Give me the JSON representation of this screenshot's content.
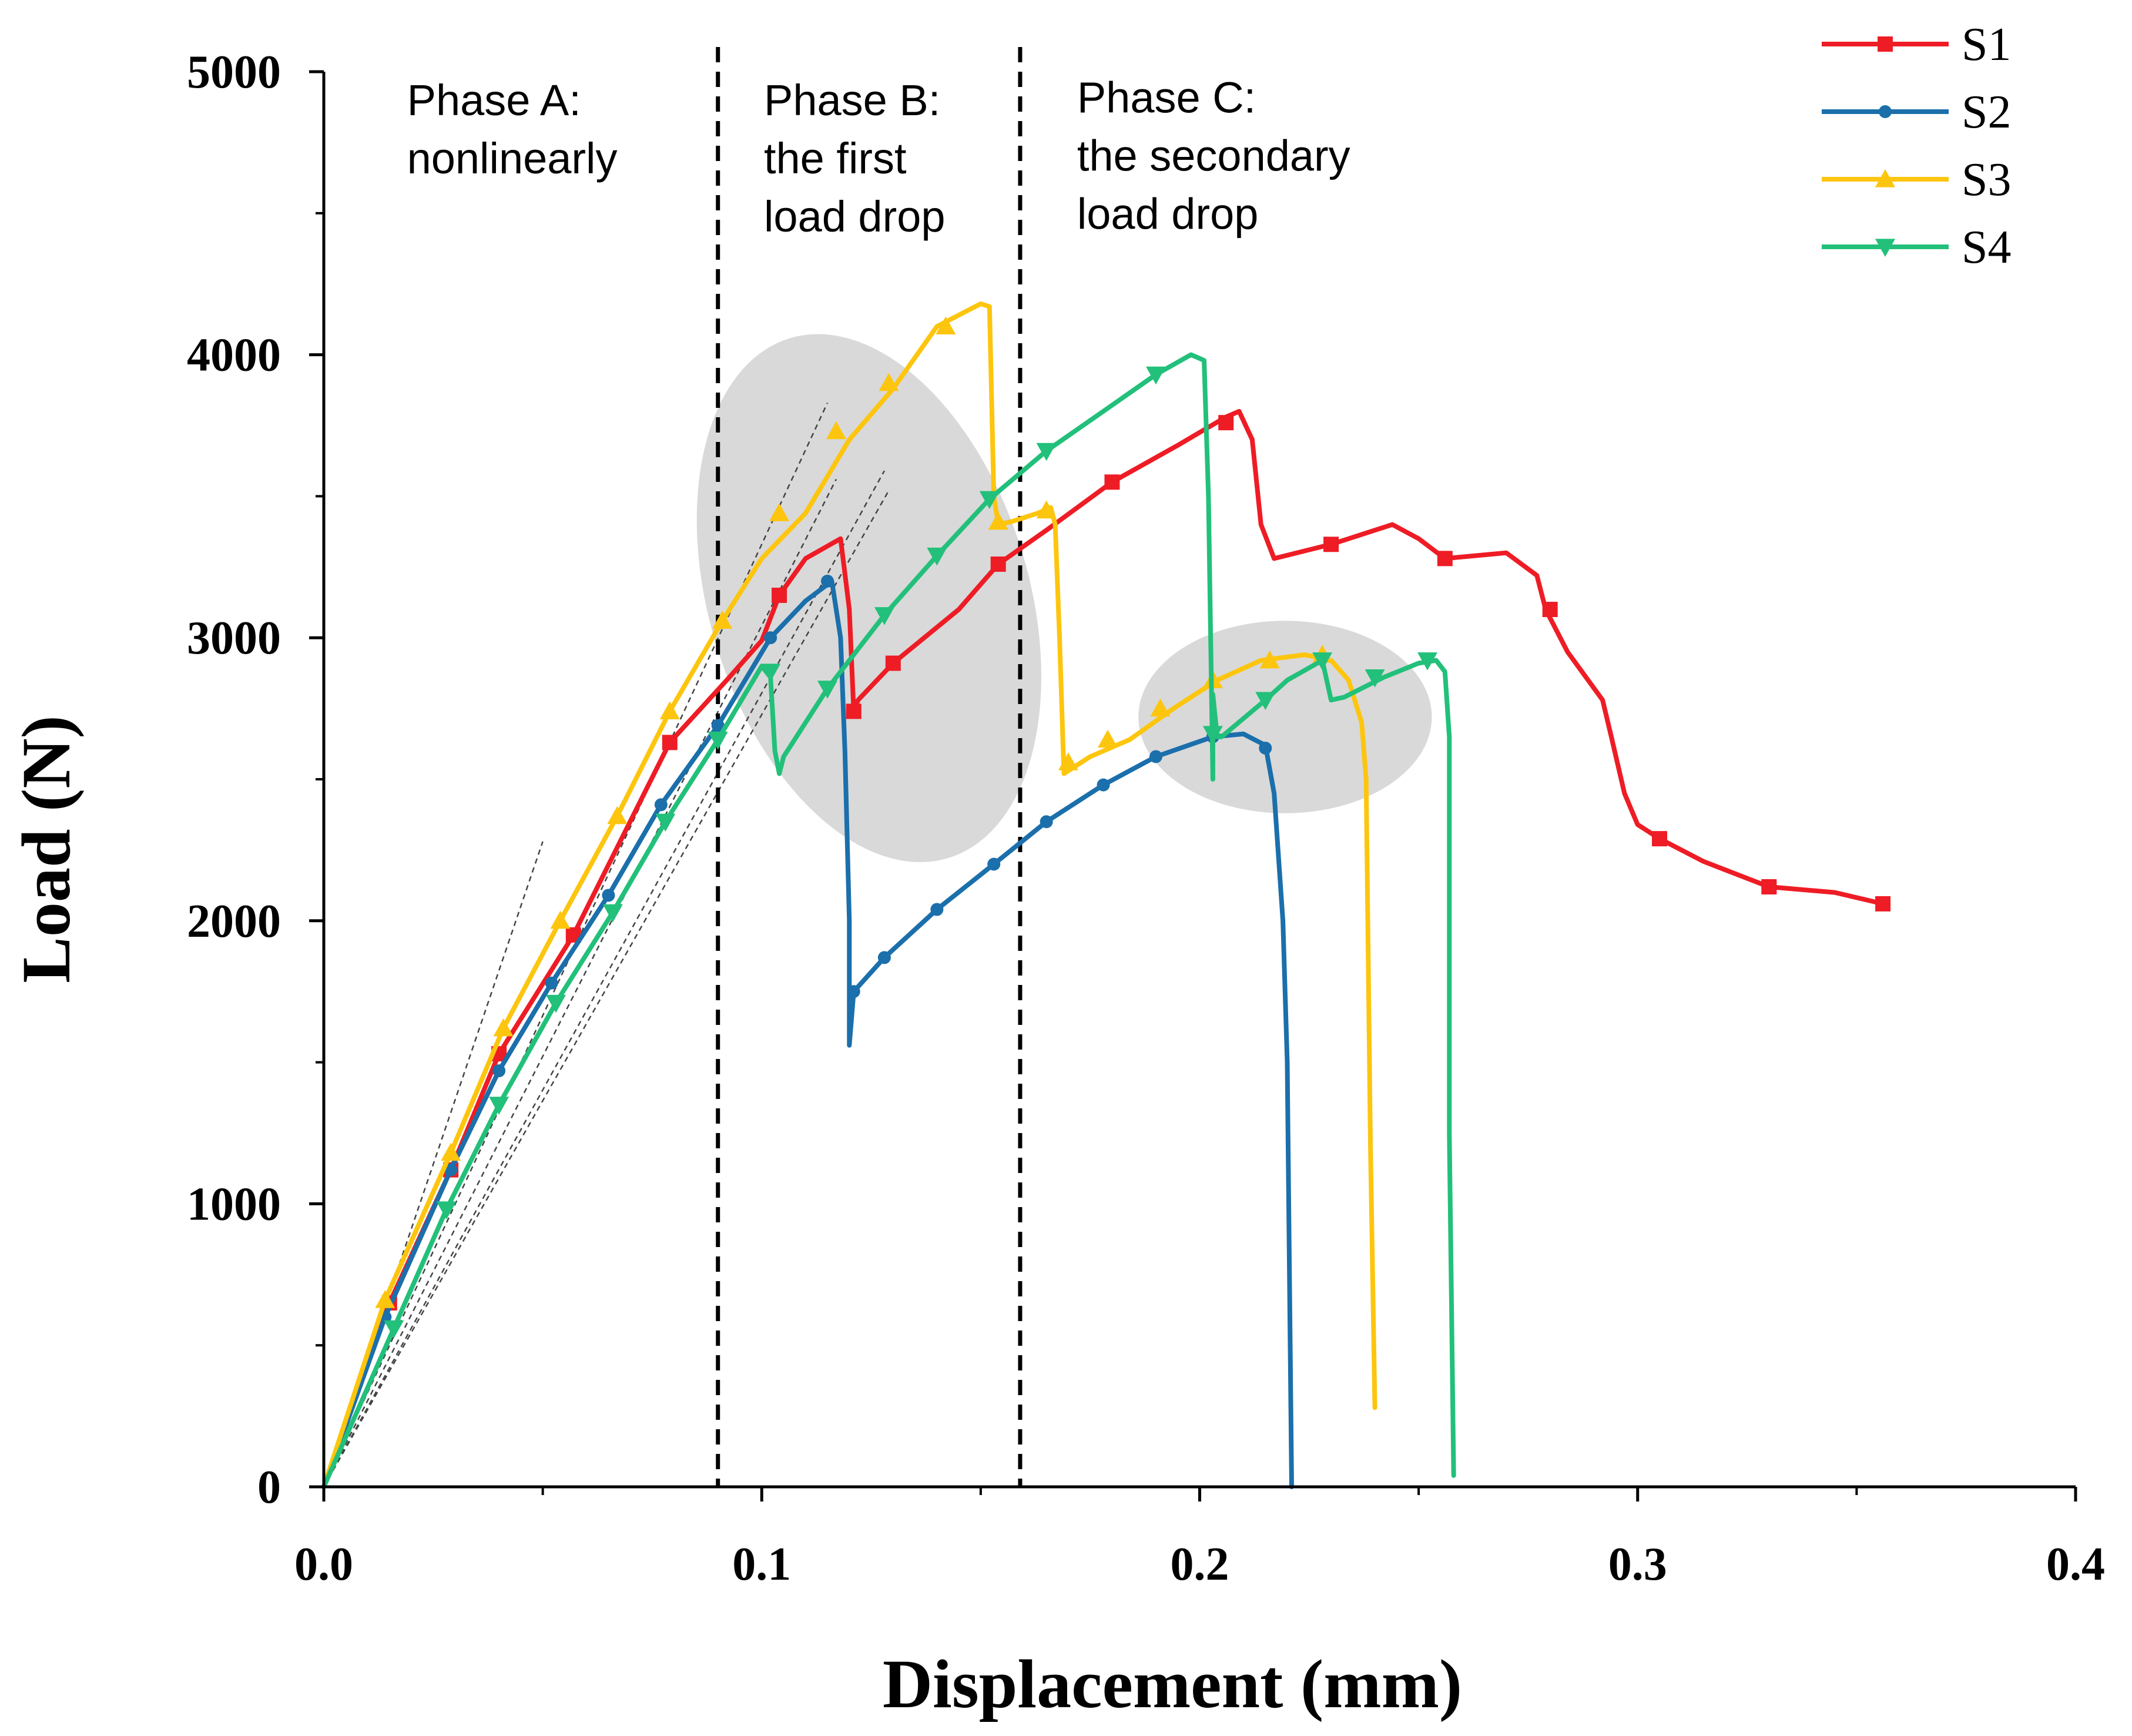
{
  "chart_data": {
    "type": "line",
    "title": "",
    "xlabel": "Displacement (mm)",
    "ylabel": "Load (N)",
    "xlim": [
      0,
      0.4
    ],
    "ylim": [
      0,
      5000
    ],
    "x_ticks": [
      0.0,
      0.1,
      0.2,
      0.3,
      0.4
    ],
    "x_tick_labels": [
      "0.0",
      "0.1",
      "0.2",
      "0.3",
      "0.4"
    ],
    "y_ticks": [
      0,
      1000,
      2000,
      3000,
      4000,
      5000
    ],
    "y_tick_labels": [
      "0",
      "1000",
      "2000",
      "3000",
      "4000",
      "5000"
    ],
    "grid": false,
    "legend_position": "top-right",
    "phase_boundaries": [
      0.09,
      0.159
    ],
    "phase_labels": [
      {
        "id": "A",
        "lines": [
          "Phase A:",
          "nonlinearly"
        ],
        "x": 0.019,
        "y": 4900
      },
      {
        "id": "B",
        "lines": [
          "Phase B:",
          "the first",
          "load drop"
        ],
        "x": 0.1005,
        "y": 4900
      },
      {
        "id": "C",
        "lines": [
          "Phase C:",
          "the secondary",
          "load drop"
        ],
        "x": 0.172,
        "y": 4910
      }
    ],
    "highlight_regions": [
      {
        "cx": 0.1245,
        "cy": 3140,
        "rx_data": 0.0365,
        "ry_data": 960,
        "angle": 17
      },
      {
        "cx": 0.2195,
        "cy": 2720,
        "rx_data": 0.0335,
        "ry_data": 340,
        "angle": 0
      }
    ],
    "guide_lines": [
      {
        "x": [
          0.0,
          0.05
        ],
        "y": [
          0,
          2280
        ]
      },
      {
        "x": [
          0.0,
          0.115
        ],
        "y": [
          0,
          3830
        ]
      },
      {
        "x": [
          0.0,
          0.117
        ],
        "y": [
          0,
          3560
        ]
      },
      {
        "x": [
          0.0,
          0.128
        ],
        "y": [
          0,
          3590
        ]
      },
      {
        "x": [
          0.0,
          0.129
        ],
        "y": [
          0,
          3520
        ]
      }
    ],
    "series": [
      {
        "name": "S1",
        "color": "#ee1c25",
        "marker": "square",
        "x": [
          0,
          0.015,
          0.029,
          0.04,
          0.057,
          0.079,
          0.092,
          0.1,
          0.104,
          0.11,
          0.118,
          0.12,
          0.121,
          0.122,
          0.13,
          0.145,
          0.154,
          0.165,
          0.18,
          0.195,
          0.206,
          0.209,
          0.212,
          0.214,
          0.217,
          0.23,
          0.24,
          0.244,
          0.25,
          0.256,
          0.27,
          0.277,
          0.279,
          0.284,
          0.292,
          0.294,
          0.297,
          0.3,
          0.305,
          0.315,
          0.33,
          0.345,
          0.356
        ],
        "y": [
          0,
          650,
          1120,
          1530,
          1950,
          2630,
          2850,
          2990,
          3150,
          3280,
          3350,
          3100,
          2740,
          2780,
          2910,
          3100,
          3260,
          3380,
          3550,
          3680,
          3780,
          3800,
          3700,
          3400,
          3280,
          3330,
          3380,
          3400,
          3350,
          3280,
          3300,
          3220,
          3100,
          2950,
          2780,
          2650,
          2450,
          2340,
          2290,
          2210,
          2120,
          2100,
          2060
        ],
        "marker_points": [
          [
            0.015,
            650
          ],
          [
            0.029,
            1120
          ],
          [
            0.04,
            1530
          ],
          [
            0.057,
            1950
          ],
          [
            0.079,
            2630
          ],
          [
            0.104,
            3150
          ],
          [
            0.121,
            2740
          ],
          [
            0.13,
            2910
          ],
          [
            0.154,
            3260
          ],
          [
            0.18,
            3550
          ],
          [
            0.206,
            3760
          ],
          [
            0.23,
            3330
          ],
          [
            0.256,
            3280
          ],
          [
            0.28,
            3100
          ],
          [
            0.305,
            2290
          ],
          [
            0.33,
            2120
          ],
          [
            0.356,
            2060
          ]
        ]
      },
      {
        "name": "S2",
        "color": "#1b6fab",
        "marker": "circle",
        "x": [
          0,
          0.014,
          0.029,
          0.04,
          0.052,
          0.065,
          0.077,
          0.09,
          0.102,
          0.11,
          0.116,
          0.118,
          0.119,
          0.12,
          0.12,
          0.121,
          0.128,
          0.14,
          0.153,
          0.165,
          0.178,
          0.19,
          0.203,
          0.21,
          0.215,
          0.217,
          0.219,
          0.22,
          0.221
        ],
        "y": [
          0,
          600,
          1120,
          1470,
          1780,
          2090,
          2410,
          2690,
          3000,
          3130,
          3200,
          3000,
          2600,
          2000,
          1560,
          1750,
          1870,
          2040,
          2200,
          2350,
          2480,
          2580,
          2650,
          2660,
          2620,
          2450,
          2000,
          1500,
          0
        ],
        "marker_points": [
          [
            0.014,
            600
          ],
          [
            0.029,
            1120
          ],
          [
            0.04,
            1470
          ],
          [
            0.052,
            1780
          ],
          [
            0.065,
            2090
          ],
          [
            0.077,
            2410
          ],
          [
            0.09,
            2690
          ],
          [
            0.102,
            3000
          ],
          [
            0.115,
            3200
          ],
          [
            0.121,
            1750
          ],
          [
            0.128,
            1870
          ],
          [
            0.14,
            2040
          ],
          [
            0.153,
            2200
          ],
          [
            0.165,
            2350
          ],
          [
            0.178,
            2480
          ],
          [
            0.19,
            2580
          ],
          [
            0.203,
            2650
          ],
          [
            0.215,
            2610
          ]
        ]
      },
      {
        "name": "S3",
        "color": "#fdc50d",
        "marker": "triangle-up",
        "x": [
          0,
          0.014,
          0.029,
          0.041,
          0.054,
          0.067,
          0.079,
          0.091,
          0.1,
          0.11,
          0.12,
          0.13,
          0.14,
          0.15,
          0.152,
          0.153,
          0.154,
          0.157,
          0.163,
          0.166,
          0.167,
          0.168,
          0.169,
          0.175,
          0.184,
          0.194,
          0.204,
          0.214,
          0.224,
          0.23,
          0.234,
          0.237,
          0.238,
          0.239,
          0.24
        ],
        "y": [
          0,
          660,
          1180,
          1620,
          2000,
          2370,
          2740,
          3060,
          3280,
          3440,
          3700,
          3880,
          4100,
          4180,
          4170,
          3500,
          3400,
          3410,
          3440,
          3460,
          3400,
          3000,
          2520,
          2580,
          2640,
          2750,
          2850,
          2920,
          2940,
          2920,
          2850,
          2700,
          2500,
          1200,
          280
        ],
        "marker_points": [
          [
            0.014,
            660
          ],
          [
            0.029,
            1180
          ],
          [
            0.041,
            1620
          ],
          [
            0.054,
            2000
          ],
          [
            0.067,
            2370
          ],
          [
            0.079,
            2740
          ],
          [
            0.091,
            3060
          ],
          [
            0.104,
            3440
          ],
          [
            0.117,
            3730
          ],
          [
            0.129,
            3900
          ],
          [
            0.142,
            4100
          ],
          [
            0.154,
            3410
          ],
          [
            0.165,
            3450
          ],
          [
            0.17,
            2560
          ],
          [
            0.179,
            2640
          ],
          [
            0.191,
            2750
          ],
          [
            0.203,
            2850
          ],
          [
            0.216,
            2920
          ],
          [
            0.228,
            2940
          ]
        ]
      },
      {
        "name": "S4",
        "color": "#22c07a",
        "marker": "triangle-down",
        "x": [
          0,
          0.016,
          0.028,
          0.04,
          0.053,
          0.066,
          0.078,
          0.09,
          0.1,
          0.102,
          0.103,
          0.104,
          0.105,
          0.115,
          0.128,
          0.14,
          0.152,
          0.165,
          0.178,
          0.19,
          0.198,
          0.201,
          0.202,
          0.203,
          0.203,
          0.204,
          0.205,
          0.215,
          0.22,
          0.228,
          0.23,
          0.233,
          0.242,
          0.25,
          0.254,
          0.256,
          0.257,
          0.257,
          0.258
        ],
        "y": [
          0,
          560,
          980,
          1350,
          1710,
          2030,
          2350,
          2640,
          2900,
          2860,
          2600,
          2520,
          2580,
          2820,
          3080,
          3290,
          3490,
          3660,
          3800,
          3930,
          4000,
          3980,
          3500,
          2500,
          2800,
          2650,
          2650,
          2780,
          2850,
          2920,
          2780,
          2790,
          2860,
          2910,
          2920,
          2880,
          2650,
          1250,
          40
        ],
        "marker_points": [
          [
            0.016,
            560
          ],
          [
            0.028,
            980
          ],
          [
            0.04,
            1350
          ],
          [
            0.053,
            1710
          ],
          [
            0.066,
            2030
          ],
          [
            0.078,
            2350
          ],
          [
            0.09,
            2640
          ],
          [
            0.102,
            2880
          ],
          [
            0.115,
            2820
          ],
          [
            0.128,
            3080
          ],
          [
            0.14,
            3290
          ],
          [
            0.152,
            3490
          ],
          [
            0.165,
            3660
          ],
          [
            0.19,
            3930
          ],
          [
            0.203,
            2660
          ],
          [
            0.215,
            2780
          ],
          [
            0.228,
            2920
          ],
          [
            0.24,
            2860
          ],
          [
            0.252,
            2920
          ]
        ]
      }
    ]
  }
}
